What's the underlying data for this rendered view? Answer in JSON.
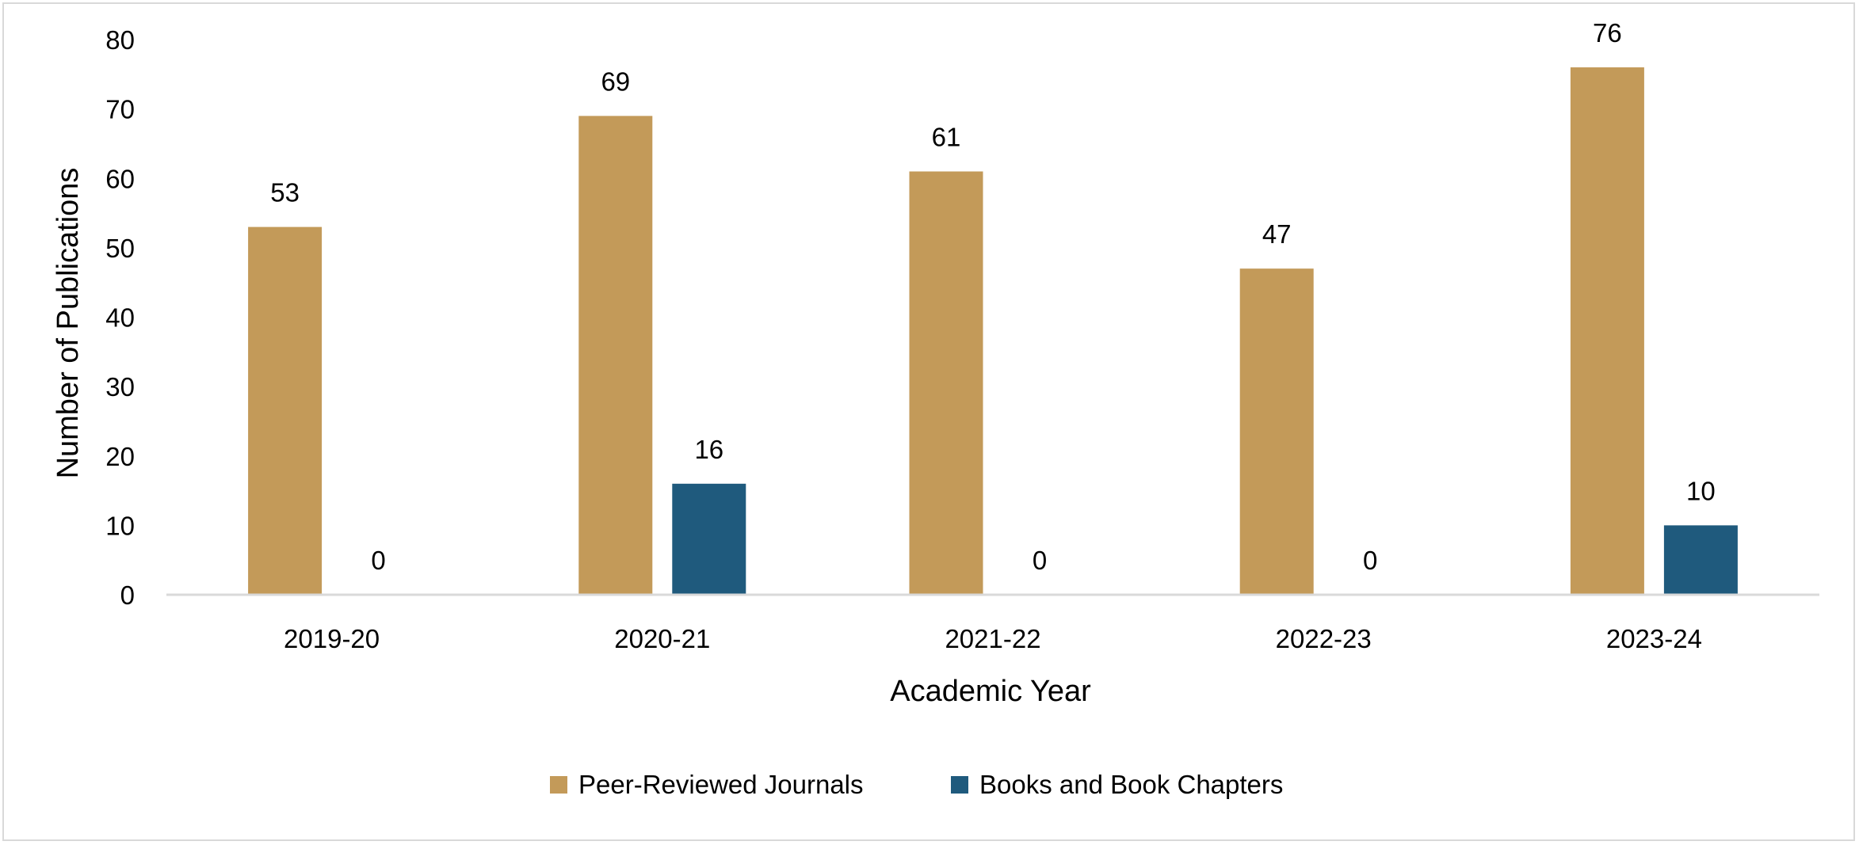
{
  "chart_data": {
    "type": "bar",
    "categories": [
      "2019-20",
      "2020-21",
      "2021-22",
      "2022-23",
      "2023-24"
    ],
    "series": [
      {
        "name": "Peer-Reviewed Journals",
        "color": "#c39a59",
        "values": [
          53,
          69,
          61,
          47,
          76
        ]
      },
      {
        "name": "Books and Book Chapters",
        "color": "#1f5a7d",
        "values": [
          0,
          16,
          0,
          0,
          10
        ]
      }
    ],
    "title": "",
    "xlabel": "Academic Year",
    "ylabel": "Number of Publications",
    "ylim": [
      0,
      80
    ],
    "yticks": [
      0,
      10,
      20,
      30,
      40,
      50,
      60,
      70,
      80
    ],
    "grid": false,
    "legend_position": "bottom",
    "axis_color": "#d9d9d9"
  }
}
